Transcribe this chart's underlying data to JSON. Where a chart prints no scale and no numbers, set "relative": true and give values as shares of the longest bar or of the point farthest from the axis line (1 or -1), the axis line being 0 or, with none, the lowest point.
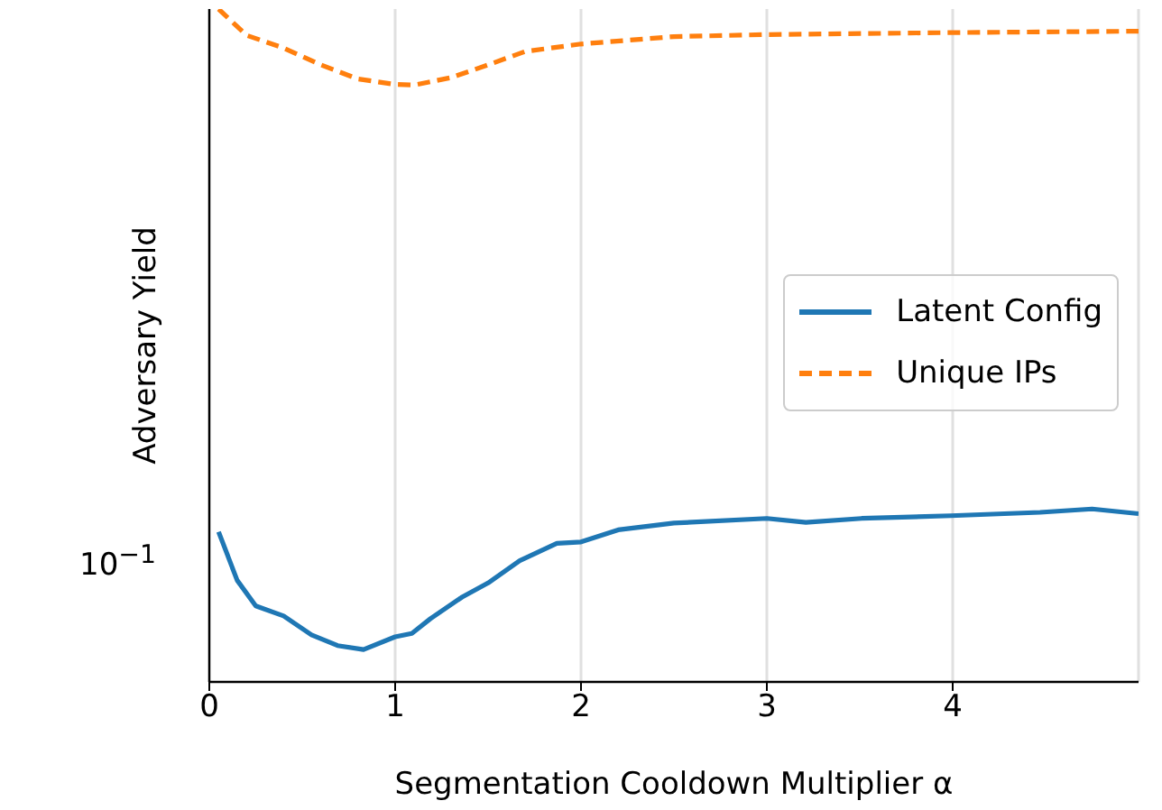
{
  "chart_data": {
    "type": "line",
    "xlabel": "Segmentation Cooldown Multiplier α",
    "ylabel": "Adversary Yield",
    "relative": true,
    "grid": "x",
    "legend": "right",
    "xlim": [
      0,
      5
    ],
    "xticks": [
      0,
      1,
      2,
      3,
      4
    ],
    "annotations": [
      "10$^{−1}$"
    ],
    "series": [
      {
        "name": "Latent Config",
        "color": "#1f77b4",
        "line_style": "solid",
        "x": [
          0.05,
          0.15,
          0.25,
          0.4,
          0.55,
          0.69,
          0.83,
          1.0,
          1.09,
          1.19,
          1.36,
          1.5,
          1.67,
          1.87,
          2.0,
          2.2,
          2.5,
          3.0,
          3.21,
          3.51,
          3.99,
          4.47,
          4.75,
          5.0
        ],
        "values": [
          0.223,
          0.151,
          0.113,
          0.098,
          0.07,
          0.054,
          0.048,
          0.067,
          0.072,
          0.094,
          0.126,
          0.147,
          0.18,
          0.206,
          0.208,
          0.226,
          0.236,
          0.243,
          0.237,
          0.243,
          0.247,
          0.252,
          0.257,
          0.25
        ]
      },
      {
        "name": "Unique IPs",
        "color": "#ff7f0e",
        "line_style": "dashed",
        "x": [
          0.05,
          0.2,
          0.4,
          0.6,
          0.8,
          1.0,
          1.1,
          1.3,
          1.5,
          1.7,
          2.0,
          2.5,
          3.0,
          4.0,
          5.0
        ],
        "values": [
          1,
          0.961,
          0.942,
          0.917,
          0.896,
          0.888,
          0.887,
          0.898,
          0.917,
          0.937,
          0.948,
          0.959,
          0.962,
          0.965,
          0.967
        ]
      }
    ]
  }
}
